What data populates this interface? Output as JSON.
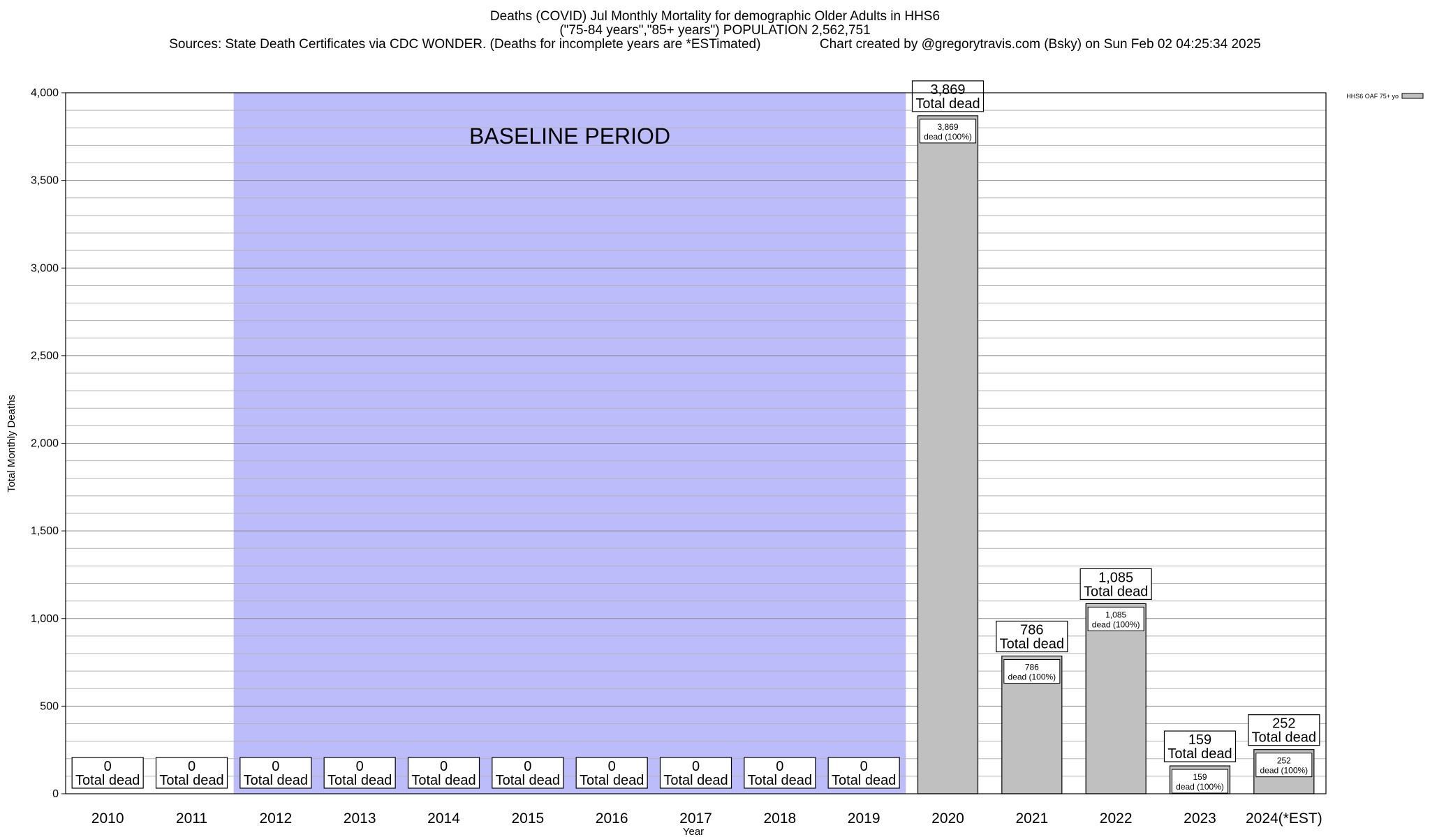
{
  "title": {
    "line1": "Deaths (COVID) Jul Monthly Mortality for demographic Older Adults in HHS6",
    "line2": "(\"75-84 years\",\"85+ years\") POPULATION 2,562,751",
    "line3": "Sources: State Death Certificates via CDC WONDER. (Deaths for incomplete years are *ESTimated)                Chart created by @gregorytravis.com (Bsky) on Sun Feb 02 04:25:34 2025"
  },
  "chart_data": {
    "type": "bar",
    "categories": [
      "2010",
      "2011",
      "2012",
      "2013",
      "2014",
      "2015",
      "2016",
      "2017",
      "2018",
      "2019",
      "2020",
      "2021",
      "2022",
      "2023",
      "2024(*EST)"
    ],
    "series": [
      {
        "name": "HHS6 OAF 75+ yo",
        "values": [
          0,
          0,
          0,
          0,
          0,
          0,
          0,
          0,
          0,
          0,
          3869,
          786,
          1085,
          159,
          252
        ],
        "color": "#c0c0c0"
      }
    ],
    "top_labels": [
      "0",
      "0",
      "0",
      "0",
      "0",
      "0",
      "0",
      "0",
      "0",
      "0",
      "3,869",
      "786",
      "1,085",
      "159",
      "252"
    ],
    "top_label_suffix": "Total dead",
    "inner_labels": [
      "",
      "",
      "",
      "",
      "",
      "",
      "",
      "",
      "",
      "",
      "3,869",
      "786",
      "1,085",
      "159",
      "252"
    ],
    "inner_label_suffix": "dead (100%)",
    "xlabel": "Year",
    "ylabel": "Total Monthly Deaths",
    "ylim": [
      0,
      4000
    ],
    "yticks": [
      0,
      500,
      1000,
      1500,
      2000,
      2500,
      3000,
      3500,
      4000
    ],
    "ytick_labels": [
      "0",
      "500",
      "1,000",
      "1,500",
      "2,000",
      "2,500",
      "3,000",
      "3,500",
      "4,000"
    ],
    "minor_grid_step": 100,
    "grid": true,
    "baseline_period": {
      "label": "BASELINE PERIOD",
      "from": "2012",
      "to": "2019",
      "color": "#bcbcfa"
    },
    "legend": {
      "placement": "top-right",
      "entries": [
        "HHS6 OAF 75+ yo"
      ]
    }
  }
}
